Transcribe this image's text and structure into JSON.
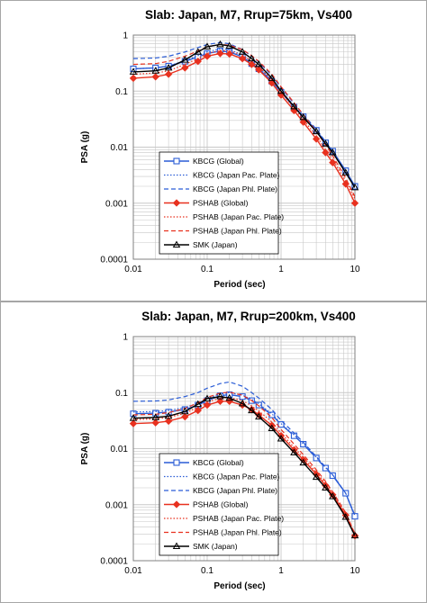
{
  "chart_data": [
    {
      "type": "line",
      "title": "Slab: Japan, M7, Rrup=75km, Vs400",
      "xlabel": "Period (sec)",
      "ylabel": "PSA (g)",
      "xscale": "log",
      "yscale": "log",
      "xlim": [
        0.01,
        10
      ],
      "ylim": [
        0.0001,
        1
      ],
      "xticks": [
        "0.01",
        "0.1",
        "1",
        "10"
      ],
      "yticks": [
        "1",
        "0.1",
        "0.01",
        "0.001",
        "0.0001"
      ],
      "grid": true,
      "legend": "lower-left",
      "series": [
        {
          "name": "KBCG (Global)",
          "color": "#2a5cd6",
          "dash": "solid",
          "marker": "square",
          "x": [
            0.01,
            0.02,
            0.03,
            0.05,
            0.075,
            0.1,
            0.15,
            0.2,
            0.3,
            0.4,
            0.5,
            0.75,
            1,
            1.5,
            2,
            3,
            4,
            5,
            7.5,
            10
          ],
          "y": [
            0.25,
            0.26,
            0.28,
            0.34,
            0.41,
            0.47,
            0.52,
            0.5,
            0.41,
            0.31,
            0.25,
            0.15,
            0.095,
            0.052,
            0.035,
            0.02,
            0.012,
            0.0085,
            0.0038,
            0.002
          ]
        },
        {
          "name": "KBCG (Japan Pac. Plate)",
          "color": "#2a5cd6",
          "dash": "dot",
          "marker": "none",
          "x": [
            0.01,
            0.02,
            0.03,
            0.05,
            0.075,
            0.1,
            0.15,
            0.2,
            0.3,
            0.4,
            0.5,
            0.75,
            1,
            1.5,
            2,
            3,
            4,
            5,
            7.5,
            10
          ],
          "y": [
            0.25,
            0.26,
            0.28,
            0.35,
            0.43,
            0.5,
            0.57,
            0.55,
            0.44,
            0.34,
            0.27,
            0.16,
            0.1,
            0.055,
            0.036,
            0.02,
            0.012,
            0.0085,
            0.0038,
            0.002
          ]
        },
        {
          "name": "KBCG (Japan Phl. Plate)",
          "color": "#2a5cd6",
          "dash": "dash",
          "marker": "none",
          "x": [
            0.01,
            0.02,
            0.03,
            0.05,
            0.075,
            0.1,
            0.15,
            0.2,
            0.3,
            0.4,
            0.5,
            0.75,
            1,
            1.5,
            2,
            3,
            4,
            5,
            7.5,
            10
          ],
          "y": [
            0.38,
            0.39,
            0.42,
            0.5,
            0.6,
            0.68,
            0.74,
            0.7,
            0.55,
            0.42,
            0.33,
            0.19,
            0.115,
            0.06,
            0.038,
            0.021,
            0.0125,
            0.0085,
            0.0038,
            0.002
          ]
        },
        {
          "name": "PSHAB (Global)",
          "color": "#e8311f",
          "dash": "solid",
          "marker": "diamond",
          "x": [
            0.01,
            0.02,
            0.03,
            0.05,
            0.075,
            0.1,
            0.15,
            0.2,
            0.3,
            0.4,
            0.5,
            0.75,
            1,
            1.5,
            2,
            3,
            4,
            5,
            7.5,
            10
          ],
          "y": [
            0.17,
            0.18,
            0.2,
            0.26,
            0.34,
            0.42,
            0.47,
            0.46,
            0.38,
            0.3,
            0.24,
            0.14,
            0.085,
            0.045,
            0.028,
            0.014,
            0.008,
            0.0053,
            0.0022,
            0.001
          ]
        },
        {
          "name": "PSHAB (Japan Pac. Plate)",
          "color": "#e8311f",
          "dash": "dot",
          "marker": "none",
          "x": [
            0.01,
            0.02,
            0.03,
            0.05,
            0.075,
            0.1,
            0.15,
            0.2,
            0.3,
            0.4,
            0.5,
            0.75,
            1,
            1.5,
            2,
            3,
            4,
            5,
            7.5,
            10
          ],
          "y": [
            0.2,
            0.21,
            0.23,
            0.3,
            0.38,
            0.47,
            0.53,
            0.52,
            0.44,
            0.34,
            0.27,
            0.16,
            0.095,
            0.05,
            0.031,
            0.016,
            0.009,
            0.006,
            0.0025,
            0.0012
          ]
        },
        {
          "name": "PSHAB (Japan Phl. Plate)",
          "color": "#e8311f",
          "dash": "dash",
          "marker": "none",
          "x": [
            0.01,
            0.02,
            0.03,
            0.05,
            0.075,
            0.1,
            0.15,
            0.2,
            0.3,
            0.4,
            0.5,
            0.75,
            1,
            1.5,
            2,
            3,
            4,
            5,
            7.5,
            10
          ],
          "y": [
            0.3,
            0.31,
            0.34,
            0.42,
            0.52,
            0.62,
            0.68,
            0.66,
            0.55,
            0.43,
            0.34,
            0.2,
            0.12,
            0.062,
            0.038,
            0.019,
            0.011,
            0.007,
            0.0028,
            0.0013
          ]
        },
        {
          "name": "SMK (Japan)",
          "color": "#000000",
          "dash": "solid",
          "marker": "triangle",
          "x": [
            0.01,
            0.02,
            0.03,
            0.05,
            0.075,
            0.1,
            0.15,
            0.2,
            0.3,
            0.4,
            0.5,
            0.75,
            1,
            1.5,
            2,
            3,
            4,
            5,
            7.5,
            10
          ],
          "y": [
            0.22,
            0.23,
            0.26,
            0.36,
            0.5,
            0.62,
            0.68,
            0.64,
            0.5,
            0.38,
            0.3,
            0.17,
            0.1,
            0.053,
            0.034,
            0.019,
            0.0115,
            0.008,
            0.0035,
            0.0019
          ]
        }
      ]
    },
    {
      "type": "line",
      "title": "Slab: Japan, M7, Rrup=200km, Vs400",
      "xlabel": "Period (sec)",
      "ylabel": "PSA (g)",
      "xscale": "log",
      "yscale": "log",
      "xlim": [
        0.01,
        10
      ],
      "ylim": [
        0.0001,
        1
      ],
      "xticks": [
        "0.01",
        "0.1",
        "1",
        "10"
      ],
      "yticks": [
        "1",
        "0.1",
        "0.01",
        "0.001",
        "0.0001"
      ],
      "grid": true,
      "legend": "lower-left",
      "series": [
        {
          "name": "KBCG (Global)",
          "color": "#2a5cd6",
          "dash": "solid",
          "marker": "square",
          "x": [
            0.01,
            0.02,
            0.03,
            0.05,
            0.075,
            0.1,
            0.15,
            0.2,
            0.3,
            0.4,
            0.5,
            0.75,
            1,
            1.5,
            2,
            3,
            4,
            5,
            7.5,
            10
          ],
          "y": [
            0.042,
            0.043,
            0.045,
            0.05,
            0.06,
            0.072,
            0.088,
            0.092,
            0.085,
            0.072,
            0.06,
            0.04,
            0.027,
            0.017,
            0.012,
            0.0068,
            0.0045,
            0.0033,
            0.0016,
            0.00062
          ]
        },
        {
          "name": "KBCG (Japan Pac. Plate)",
          "color": "#2a5cd6",
          "dash": "dot",
          "marker": "none",
          "x": [
            0.01,
            0.02,
            0.03,
            0.05,
            0.075,
            0.1,
            0.15,
            0.2,
            0.3,
            0.4,
            0.5,
            0.75,
            1,
            1.5,
            2,
            3,
            4,
            5,
            7.5,
            10
          ],
          "y": [
            0.045,
            0.046,
            0.048,
            0.054,
            0.065,
            0.078,
            0.095,
            0.1,
            0.09,
            0.076,
            0.063,
            0.042,
            0.028,
            0.0175,
            0.0122,
            0.007,
            0.0046,
            0.0034,
            0.0016,
            0.00064
          ]
        },
        {
          "name": "KBCG (Japan Phl. Plate)",
          "color": "#2a5cd6",
          "dash": "dash",
          "marker": "none",
          "x": [
            0.01,
            0.02,
            0.03,
            0.05,
            0.075,
            0.1,
            0.15,
            0.2,
            0.3,
            0.4,
            0.5,
            0.75,
            1,
            1.5,
            2,
            3,
            4,
            5,
            7.5,
            10
          ],
          "y": [
            0.07,
            0.071,
            0.074,
            0.085,
            0.1,
            0.12,
            0.145,
            0.155,
            0.13,
            0.1,
            0.08,
            0.05,
            0.032,
            0.019,
            0.013,
            0.0072,
            0.0047,
            0.0034,
            0.0016,
            0.00064
          ]
        },
        {
          "name": "PSHAB (Global)",
          "color": "#e8311f",
          "dash": "solid",
          "marker": "diamond",
          "x": [
            0.01,
            0.02,
            0.03,
            0.05,
            0.075,
            0.1,
            0.15,
            0.2,
            0.3,
            0.4,
            0.5,
            0.75,
            1,
            1.5,
            2,
            3,
            4,
            5,
            7.5,
            10
          ],
          "y": [
            0.028,
            0.029,
            0.031,
            0.037,
            0.048,
            0.06,
            0.07,
            0.07,
            0.06,
            0.05,
            0.04,
            0.026,
            0.017,
            0.0095,
            0.0063,
            0.0035,
            0.0022,
            0.0015,
            0.00065,
            0.00028
          ]
        },
        {
          "name": "PSHAB (Japan Pac. Plate)",
          "color": "#e8311f",
          "dash": "dot",
          "marker": "none",
          "x": [
            0.01,
            0.02,
            0.03,
            0.05,
            0.075,
            0.1,
            0.15,
            0.2,
            0.3,
            0.4,
            0.5,
            0.75,
            1,
            1.5,
            2,
            3,
            4,
            5,
            7.5,
            10
          ],
          "y": [
            0.033,
            0.034,
            0.036,
            0.043,
            0.055,
            0.068,
            0.08,
            0.082,
            0.072,
            0.058,
            0.047,
            0.03,
            0.019,
            0.0105,
            0.007,
            0.0038,
            0.0024,
            0.0016,
            0.0007,
            0.0003
          ]
        },
        {
          "name": "PSHAB (Japan Phl. Plate)",
          "color": "#e8311f",
          "dash": "dash",
          "marker": "none",
          "x": [
            0.01,
            0.02,
            0.03,
            0.05,
            0.075,
            0.1,
            0.15,
            0.2,
            0.3,
            0.4,
            0.5,
            0.75,
            1,
            1.5,
            2,
            3,
            4,
            5,
            7.5,
            10
          ],
          "y": [
            0.04,
            0.041,
            0.044,
            0.052,
            0.066,
            0.082,
            0.098,
            0.102,
            0.09,
            0.072,
            0.058,
            0.036,
            0.022,
            0.012,
            0.0078,
            0.0042,
            0.0026,
            0.0017,
            0.00072,
            0.0003
          ]
        },
        {
          "name": "SMK (Japan)",
          "color": "#000000",
          "dash": "solid",
          "marker": "triangle",
          "x": [
            0.01,
            0.02,
            0.03,
            0.05,
            0.075,
            0.1,
            0.15,
            0.2,
            0.3,
            0.4,
            0.5,
            0.75,
            1,
            1.5,
            2,
            3,
            4,
            5,
            7.5,
            10
          ],
          "y": [
            0.035,
            0.036,
            0.038,
            0.046,
            0.062,
            0.078,
            0.085,
            0.08,
            0.064,
            0.048,
            0.037,
            0.023,
            0.015,
            0.0085,
            0.0056,
            0.0031,
            0.002,
            0.0014,
            0.0006,
            0.00028
          ]
        }
      ]
    }
  ]
}
